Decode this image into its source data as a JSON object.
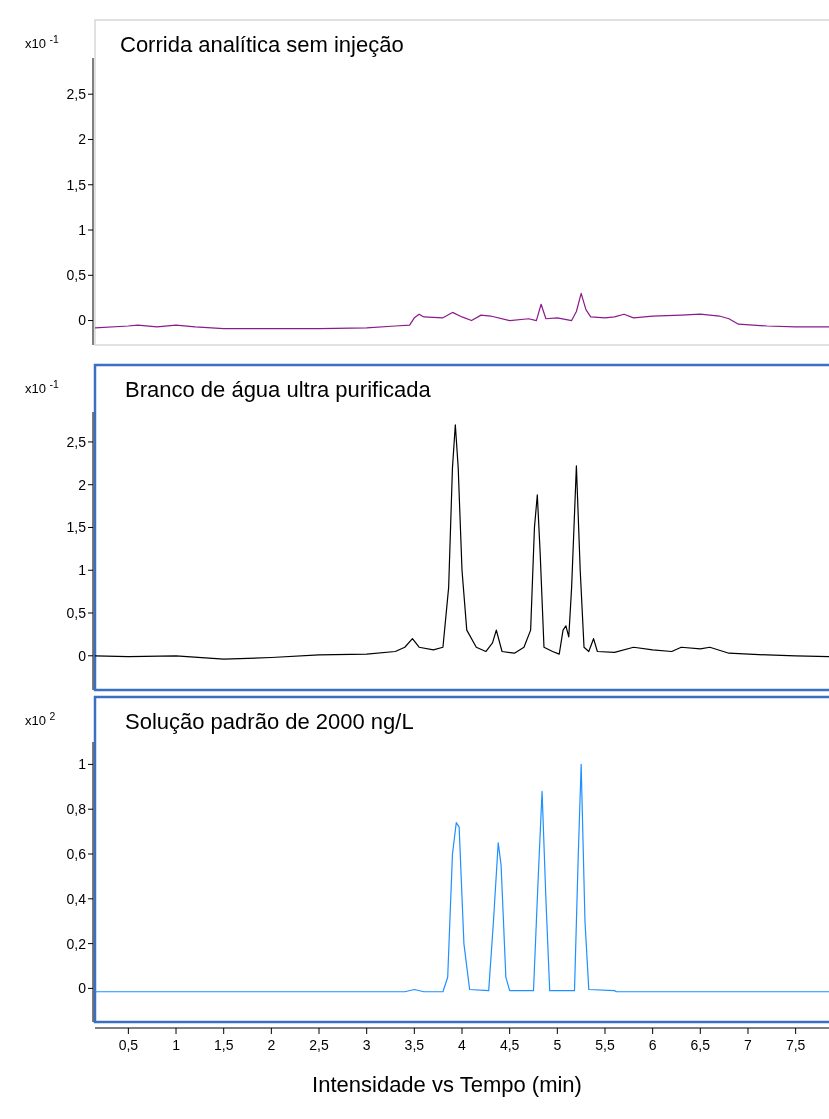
{
  "chart_data": [
    {
      "type": "line",
      "title": "Corrida analítica sem injeção",
      "ylabel": "x10 $^{-1}$",
      "xlim": [
        0.15,
        7.85
      ],
      "ylim": [
        -0.27,
        2.9
      ],
      "tick_labels": "y",
      "grid": false,
      "marker": "none",
      "line_style": "solid",
      "yticks": [
        0,
        {
          "value": 0.5,
          "label": "0,5"
        },
        1,
        {
          "value": 1.5,
          "label": "1,5"
        },
        2,
        {
          "value": 2.5,
          "label": "2,5"
        }
      ],
      "series": [
        {
          "color": "#8b1a8b",
          "x": [
            0.15,
            0.5,
            0.6,
            0.8,
            1.0,
            1.2,
            1.5,
            2.0,
            2.5,
            3.0,
            3.3,
            3.45,
            3.5,
            3.55,
            3.6,
            3.8,
            3.9,
            4.0,
            4.1,
            4.2,
            4.3,
            4.5,
            4.7,
            4.78,
            4.83,
            4.88,
            5.0,
            5.15,
            5.2,
            5.25,
            5.3,
            5.35,
            5.5,
            5.6,
            5.7,
            5.8,
            6.0,
            6.3,
            6.5,
            6.7,
            6.8,
            6.9,
            7.2,
            7.5,
            7.85
          ],
          "values": [
            -0.08,
            -0.06,
            -0.05,
            -0.07,
            -0.05,
            -0.07,
            -0.09,
            -0.09,
            -0.09,
            -0.08,
            -0.06,
            -0.05,
            0.03,
            0.07,
            0.04,
            0.03,
            0.09,
            0.04,
            0.0,
            0.06,
            0.05,
            0.0,
            0.02,
            0.0,
            0.18,
            0.02,
            0.03,
            0.0,
            0.1,
            0.3,
            0.12,
            0.04,
            0.03,
            0.04,
            0.07,
            0.03,
            0.05,
            0.06,
            0.07,
            0.05,
            0.02,
            -0.04,
            -0.06,
            -0.07,
            -0.07
          ]
        }
      ]
    },
    {
      "type": "line",
      "title": "Branco de água ultra purificada",
      "ylabel": "x10 $^{-1}$",
      "xlim": [
        0.15,
        7.85
      ],
      "ylim": [
        -0.4,
        2.85
      ],
      "tick_labels": "y",
      "grid": false,
      "marker": "none",
      "line_style": "solid",
      "yticks": [
        0,
        {
          "value": 0.5,
          "label": "0,5"
        },
        1,
        {
          "value": 1.5,
          "label": "1,5"
        },
        2,
        {
          "value": 2.5,
          "label": "2,5"
        }
      ],
      "series": [
        {
          "color": "#000000",
          "x": [
            0.15,
            0.5,
            1.0,
            1.5,
            2.0,
            2.5,
            3.0,
            3.3,
            3.4,
            3.48,
            3.55,
            3.7,
            3.8,
            3.86,
            3.9,
            3.93,
            3.96,
            4.0,
            4.05,
            4.15,
            4.25,
            4.32,
            4.36,
            4.42,
            4.55,
            4.65,
            4.72,
            4.76,
            4.79,
            4.82,
            4.86,
            4.95,
            5.02,
            5.06,
            5.09,
            5.12,
            5.15,
            5.2,
            5.24,
            5.28,
            5.33,
            5.38,
            5.42,
            5.6,
            5.8,
            6.0,
            6.2,
            6.3,
            6.5,
            6.6,
            6.8,
            7.2,
            7.5,
            7.85
          ],
          "values": [
            0,
            -0.01,
            0,
            -0.04,
            -0.02,
            0.01,
            0.02,
            0.05,
            0.1,
            0.2,
            0.1,
            0.07,
            0.1,
            0.8,
            2.2,
            2.7,
            2.2,
            1.0,
            0.3,
            0.1,
            0.05,
            0.15,
            0.3,
            0.05,
            0.03,
            0.1,
            0.3,
            1.5,
            1.88,
            1.2,
            0.1,
            0.05,
            0.02,
            0.3,
            0.35,
            0.22,
            0.8,
            2.22,
            1.0,
            0.1,
            0.05,
            0.2,
            0.05,
            0.04,
            0.1,
            0.07,
            0.05,
            0.1,
            0.08,
            0.1,
            0.03,
            0.01,
            0,
            -0.01
          ]
        }
      ]
    },
    {
      "type": "line",
      "title": "Solução padrão de 2000 ng/L",
      "ylabel": "x10 $^{2}$",
      "xlabel": "Intensidade vs Tempo (min)",
      "xlim": [
        0.15,
        7.85
      ],
      "ylim": [
        -0.15,
        1.1
      ],
      "grid": false,
      "marker": "none",
      "line_style": "solid",
      "yticks": [
        0,
        {
          "value": 0.2,
          "label": "0,2"
        },
        {
          "value": 0.4,
          "label": "0,4"
        },
        {
          "value": 0.6,
          "label": "0,6"
        },
        {
          "value": 0.8,
          "label": "0,8"
        },
        1
      ],
      "xticks": [
        {
          "value": 0.5,
          "label": "0,5"
        },
        1,
        {
          "value": 1.5,
          "label": "1,5"
        },
        2,
        {
          "value": 2.5,
          "label": "2,5"
        },
        3,
        {
          "value": 3.5,
          "label": "3,5"
        },
        4,
        {
          "value": 4.5,
          "label": "4,5"
        },
        5,
        {
          "value": 5.5,
          "label": "5,5"
        },
        6,
        {
          "value": 6.5,
          "label": "6,5"
        },
        7,
        {
          "value": 7.5,
          "label": "7,5"
        }
      ],
      "series": [
        {
          "color": "#1e90ff",
          "x": [
            0.15,
            3.4,
            3.5,
            3.6,
            3.8,
            3.85,
            3.9,
            3.94,
            3.97,
            4.02,
            4.08,
            4.28,
            4.33,
            4.38,
            4.41,
            4.46,
            4.5,
            4.75,
            4.8,
            4.84,
            4.88,
            4.92,
            5.18,
            5.22,
            5.25,
            5.29,
            5.33,
            5.6,
            5.62,
            7.85
          ],
          "values": [
            -0.015,
            -0.015,
            -0.005,
            -0.015,
            -0.015,
            0.05,
            0.6,
            0.74,
            0.72,
            0.2,
            -0.005,
            -0.01,
            0.3,
            0.65,
            0.55,
            0.05,
            -0.01,
            -0.01,
            0.5,
            0.88,
            0.4,
            -0.01,
            -0.01,
            0.6,
            1.0,
            0.3,
            -0.005,
            -0.01,
            -0.015,
            -0.015
          ]
        }
      ]
    }
  ]
}
